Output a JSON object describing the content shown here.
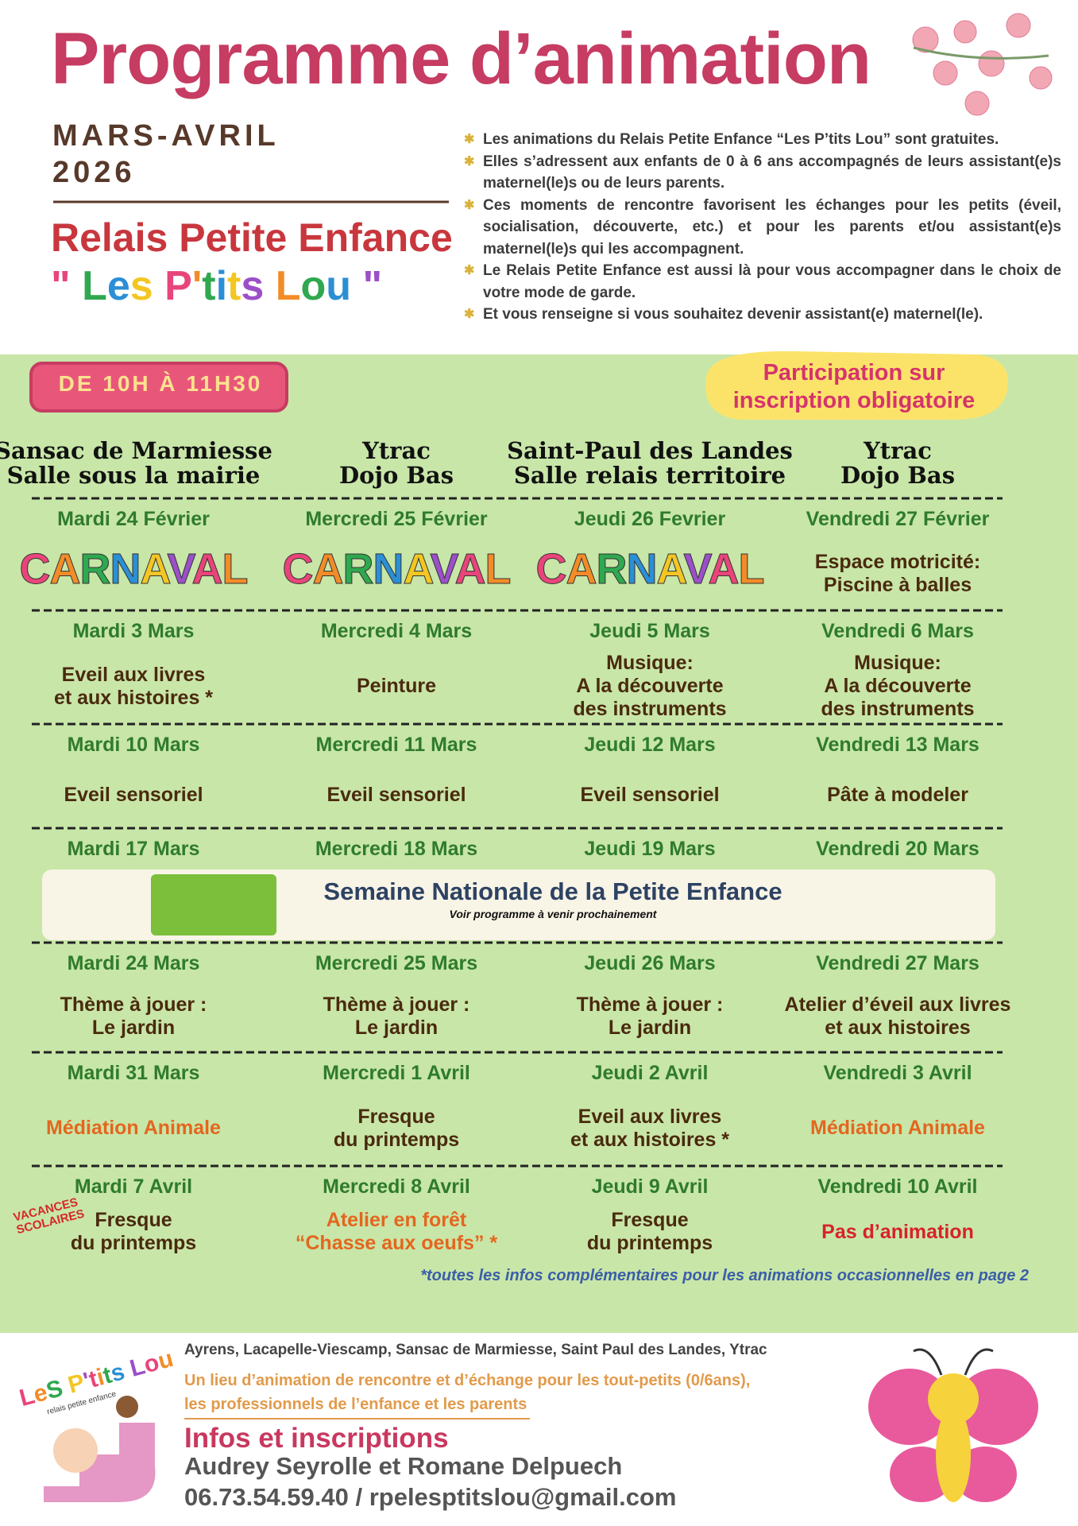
{
  "header": {
    "title": "Programme d’animation",
    "period": "MARS-AVRIL",
    "year": "2026",
    "org": "Relais Petite Enfance",
    "org_name": "\" Les P'tits Lou \""
  },
  "intro": {
    "bullets": [
      "Les animations du Relais Petite Enfance “Les P’tits Lou” sont gratuites.",
      "Elles s’adressent aux enfants de 0 à 6 ans accompagnés de leurs assistant(e)s maternel(le)s ou de leurs parents.",
      "Ces moments de rencontre favorisent les échanges pour les petits (éveil, socialisation, découverte, etc.) et pour les parents et/ou assistant(e)s maternel(le)s qui les accompagnent.",
      "Le Relais Petite Enfance est aussi là pour vous accompagner dans le choix de votre mode de garde.",
      "Et vous renseigne si vous souhaitez devenir assistant(e) maternel(le)."
    ]
  },
  "schedule": {
    "hours": "DE 10H À 11H30",
    "registration": "Participation sur inscription obligatoire",
    "columns": [
      {
        "lines": [
          "Sansac de Marmiesse",
          "Salle sous la mairie"
        ]
      },
      {
        "lines": [
          "Ytrac",
          "Dojo Bas"
        ]
      },
      {
        "lines": [
          "Saint-Paul des Landes",
          "Salle relais territoire"
        ]
      },
      {
        "lines": [
          "Ytrac",
          "Dojo Bas"
        ]
      }
    ],
    "weeks": [
      {
        "cells": [
          {
            "date": "Mardi 24 Février",
            "activity": [
              "CARNAVAL"
            ],
            "style": "carnaval"
          },
          {
            "date": "Mercredi 25 Février",
            "activity": [
              "CARNAVAL"
            ],
            "style": "carnaval"
          },
          {
            "date": "Jeudi 26 Fevrier",
            "activity": [
              "CARNAVAL"
            ],
            "style": "carnaval"
          },
          {
            "date": "Vendredi 27 Février",
            "activity": [
              "Espace motricité:",
              "Piscine à balles"
            ]
          }
        ]
      },
      {
        "cells": [
          {
            "date": "Mardi 3 Mars",
            "activity": [
              "Eveil aux livres",
              "et aux histoires *"
            ]
          },
          {
            "date": "Mercredi 4 Mars",
            "activity": [
              "Peinture"
            ]
          },
          {
            "date": "Jeudi 5 Mars",
            "activity": [
              "Musique:",
              "A la découverte",
              "des instruments"
            ]
          },
          {
            "date": "Vendredi 6 Mars",
            "activity": [
              "Musique:",
              "A la découverte",
              "des instruments"
            ]
          }
        ]
      },
      {
        "cells": [
          {
            "date": "Mardi 10 Mars",
            "activity": [
              "Eveil sensoriel"
            ]
          },
          {
            "date": "Mercredi 11 Mars",
            "activity": [
              "Eveil sensoriel"
            ]
          },
          {
            "date": "Jeudi 12 Mars",
            "activity": [
              "Eveil sensoriel"
            ]
          },
          {
            "date": "Vendredi 13 Mars",
            "activity": [
              "Pâte à modeler"
            ]
          }
        ]
      },
      {
        "cells": [
          {
            "date": "Mardi 17 Mars",
            "activity": []
          },
          {
            "date": "Mercredi 18 Mars",
            "activity": []
          },
          {
            "date": "Jeudi 19 Mars",
            "activity": []
          },
          {
            "date": "Vendredi 20 Mars",
            "activity": []
          }
        ],
        "banner": {
          "title": "Semaine Nationale de la Petite Enfance",
          "subtitle": "Voir programme à venir prochainement"
        }
      },
      {
        "cells": [
          {
            "date": "Mardi 24 Mars",
            "activity": [
              "Thème à jouer :",
              "Le jardin"
            ]
          },
          {
            "date": "Mercredi 25 Mars",
            "activity": [
              "Thème à jouer :",
              "Le jardin"
            ]
          },
          {
            "date": "Jeudi 26 Mars",
            "activity": [
              "Thème à jouer :",
              "Le jardin"
            ]
          },
          {
            "date": "Vendredi 27 Mars",
            "activity": [
              "Atelier d’éveil aux livres",
              "et aux histoires"
            ]
          }
        ]
      },
      {
        "cells": [
          {
            "date": "Mardi 31 Mars",
            "activity": [
              "Médiation Animale"
            ],
            "color": "#e4661f"
          },
          {
            "date": "Mercredi 1 Avril",
            "activity": [
              "Fresque",
              "du printemps"
            ]
          },
          {
            "date": "Jeudi 2 Avril",
            "activity": [
              "Eveil aux livres",
              "et aux histoires *"
            ]
          },
          {
            "date": "Vendredi 3 Avril",
            "activity": [
              "Médiation Animale"
            ],
            "color": "#e4661f"
          }
        ]
      },
      {
        "cells": [
          {
            "date": "Mardi 7 Avril",
            "activity": [
              "Fresque",
              "du printemps"
            ],
            "tag": "VACANCES SCOLAIRES"
          },
          {
            "date": "Mercredi 8 Avril",
            "activity": [
              "Atelier en forêt",
              "“Chasse aux oeufs” *"
            ],
            "color": "#e4661f"
          },
          {
            "date": "Jeudi 9 Avril",
            "activity": [
              "Fresque",
              "du printemps"
            ]
          },
          {
            "date": "Vendredi 10 Avril",
            "activity": [
              "Pas d’animation"
            ],
            "color": "#d8222a"
          }
        ]
      }
    ],
    "footnote": "*toutes les infos complémentaires pour les animations occasionnelles en page 2"
  },
  "footer": {
    "logo": "LeS P'tits Lou",
    "logo_sub": "relais petite enfance",
    "communes": "Ayrens, Lacapelle-Viescamp, Sansac de Marmiesse, Saint Paul des Landes, Ytrac",
    "tagline": [
      "Un lieu d’animation de rencontre et d’échange pour les tout-petits (0/6ans),",
      "les professionnels de l’enfance et les parents"
    ],
    "contact_title": "Infos et inscriptions",
    "names": "Audrey Seyrolle et Romane Delpuech",
    "contact": "06.73.54.59.40 / rpelesptitslou@gmail.com"
  }
}
